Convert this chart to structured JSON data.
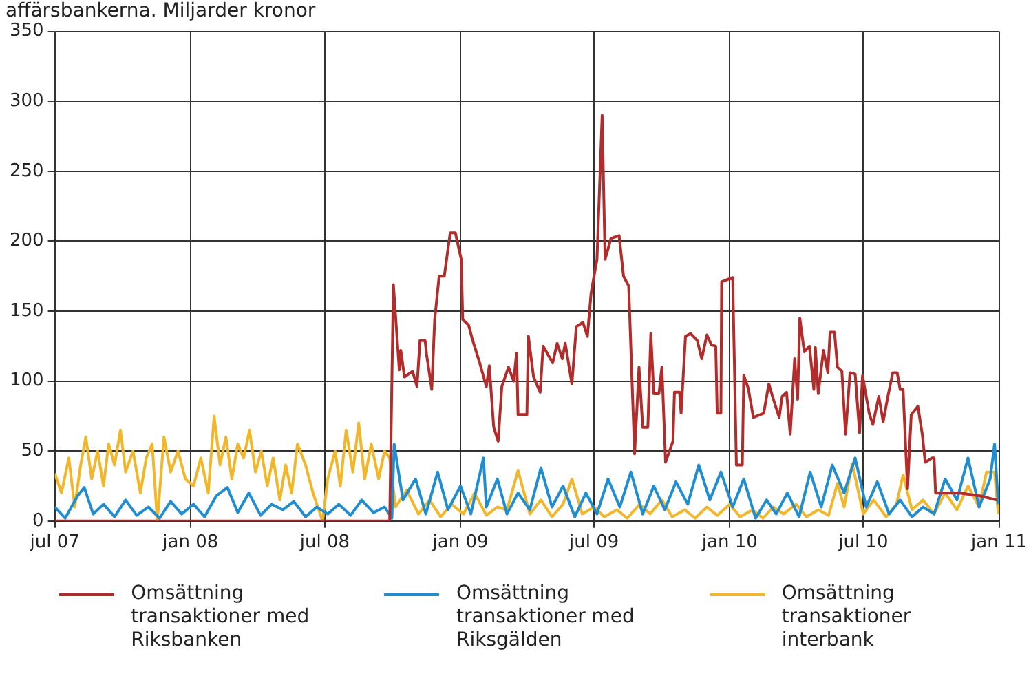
{
  "chart_data": {
    "type": "line",
    "title": "affärsbankerna. Miljarder kronor",
    "xlim": [
      "2007-07-01",
      "2011-01-01"
    ],
    "xticks": [
      {
        "value": "2007-07-01",
        "label": "jul 07"
      },
      {
        "value": "2008-01-01",
        "label": "jan 08"
      },
      {
        "value": "2008-07-01",
        "label": "jul 08"
      },
      {
        "value": "2009-01-01",
        "label": "jan 09"
      },
      {
        "value": "2009-07-01",
        "label": "jul 09"
      },
      {
        "value": "2010-01-01",
        "label": "jan 10"
      },
      {
        "value": "2010-07-01",
        "label": "jul 10"
      },
      {
        "value": "2011-01-01",
        "label": "jan 11"
      }
    ],
    "ylim": [
      0,
      350
    ],
    "yticks": [
      0,
      50,
      100,
      150,
      200,
      250,
      300,
      350
    ],
    "grid": true,
    "legend": "bottom",
    "marker": "none",
    "line_style": "solid",
    "series": [
      {
        "name": "Omsättning transaktioner med Riksbanken",
        "color": "#b22c2c",
        "x": [
          "2007-07-01",
          "2008-09-27",
          "2008-09-28",
          "2008-10-02",
          "2008-10-10",
          "2008-10-12",
          "2008-10-17",
          "2008-10-28",
          "2008-11-03",
          "2008-11-07",
          "2008-11-14",
          "2008-11-16",
          "2008-11-23",
          "2008-11-27",
          "2008-12-03",
          "2008-12-10",
          "2008-12-18",
          "2008-12-25",
          "2009-01-02",
          "2009-01-04",
          "2009-01-12",
          "2009-01-17",
          "2009-01-27",
          "2009-02-05",
          "2009-02-09",
          "2009-02-15",
          "2009-02-21",
          "2009-02-26",
          "2009-03-07",
          "2009-03-14",
          "2009-03-18",
          "2009-03-20",
          "2009-04-01",
          "2009-04-03",
          "2009-04-10",
          "2009-04-19",
          "2009-04-23",
          "2009-05-06",
          "2009-05-12",
          "2009-05-19",
          "2009-05-23",
          "2009-06-01",
          "2009-06-07",
          "2009-06-16",
          "2009-06-22",
          "2009-06-27",
          "2009-07-05",
          "2009-07-12",
          "2009-07-16",
          "2009-07-24",
          "2009-08-04",
          "2009-08-10",
          "2009-08-17",
          "2009-08-25",
          "2009-08-31",
          "2009-09-05",
          "2009-09-12",
          "2009-09-16",
          "2009-09-20",
          "2009-09-27",
          "2009-10-01",
          "2009-10-06",
          "2009-10-16",
          "2009-10-18",
          "2009-10-25",
          "2009-10-27",
          "2009-11-02",
          "2009-11-09",
          "2009-11-18",
          "2009-11-24",
          "2009-12-01",
          "2009-12-07",
          "2009-12-13",
          "2009-12-15",
          "2009-12-20",
          "2009-12-21",
          "2010-01-05",
          "2010-01-10",
          "2010-01-18",
          "2010-01-20",
          "2010-01-26",
          "2010-02-02",
          "2010-02-16",
          "2010-02-23",
          "2010-02-28",
          "2010-03-09",
          "2010-03-13",
          "2010-03-19",
          "2010-03-24",
          "2010-03-30",
          "2010-04-03",
          "2010-04-06",
          "2010-04-12",
          "2010-04-19",
          "2010-04-25",
          "2010-04-27",
          "2010-05-01",
          "2010-05-08",
          "2010-05-14",
          "2010-05-17",
          "2010-05-23",
          "2010-05-27",
          "2010-06-02",
          "2010-06-07",
          "2010-06-13",
          "2010-06-20",
          "2010-06-26",
          "2010-06-30",
          "2010-07-09",
          "2010-07-14",
          "2010-07-22",
          "2010-07-28",
          "2010-08-03",
          "2010-08-10",
          "2010-08-16",
          "2010-08-20",
          "2010-08-24",
          "2010-08-30",
          "2010-09-04",
          "2010-09-13",
          "2010-09-19",
          "2010-09-23",
          "2010-10-02",
          "2010-10-05",
          "2010-10-07",
          "2010-11-09",
          "2010-12-06",
          "2010-12-29"
        ],
        "values": [
          0,
          0,
          0,
          169,
          108,
          122,
          103,
          107,
          96,
          129,
          129,
          119,
          94,
          144,
          175,
          175,
          206,
          206,
          187,
          144,
          140,
          130,
          113,
          96,
          111,
          67,
          57,
          96,
          110,
          100,
          120,
          76,
          76,
          132,
          103,
          92,
          125,
          113,
          127,
          116,
          127,
          98,
          139,
          142,
          132,
          163,
          187,
          290,
          187,
          202,
          204,
          175,
          168,
          48,
          110,
          67,
          67,
          134,
          91,
          91,
          110,
          42,
          57,
          92,
          92,
          77,
          132,
          134,
          129,
          116,
          133,
          126,
          125,
          77,
          77,
          171,
          174,
          40,
          40,
          104,
          95,
          74,
          77,
          98,
          89,
          74,
          89,
          92,
          62,
          116,
          87,
          145,
          121,
          125,
          94,
          124,
          91,
          122,
          106,
          135,
          135,
          110,
          107,
          62,
          106,
          105,
          63,
          104,
          77,
          69,
          89,
          71,
          88,
          106,
          106,
          94,
          94,
          23,
          76,
          82,
          62,
          42,
          45,
          45,
          20,
          20,
          18,
          15
        ]
      },
      {
        "name": "Omsättning transaktioner med Riksgälden",
        "color": "#1f8dd0",
        "x": [
          "2007-07-01",
          "2007-07-15",
          "2007-08-01",
          "2007-08-10",
          "2007-08-22",
          "2007-09-05",
          "2007-09-20",
          "2007-10-05",
          "2007-10-20",
          "2007-11-05",
          "2007-11-20",
          "2007-12-05",
          "2007-12-20",
          "2008-01-05",
          "2008-01-20",
          "2008-02-05",
          "2008-02-20",
          "2008-03-05",
          "2008-03-20",
          "2008-04-05",
          "2008-04-20",
          "2008-05-05",
          "2008-05-20",
          "2008-06-05",
          "2008-06-20",
          "2008-07-05",
          "2008-07-20",
          "2008-08-05",
          "2008-08-20",
          "2008-09-05",
          "2008-09-20",
          "2008-09-30",
          "2008-10-03",
          "2008-10-15",
          "2008-11-01",
          "2008-11-15",
          "2008-12-01",
          "2008-12-15",
          "2009-01-01",
          "2009-01-15",
          "2009-02-01",
          "2009-02-05",
          "2009-02-20",
          "2009-03-05",
          "2009-03-20",
          "2009-04-05",
          "2009-04-20",
          "2009-05-05",
          "2009-05-20",
          "2009-06-05",
          "2009-06-20",
          "2009-07-05",
          "2009-07-20",
          "2009-08-05",
          "2009-08-20",
          "2009-09-05",
          "2009-09-20",
          "2009-10-05",
          "2009-10-20",
          "2009-11-05",
          "2009-11-20",
          "2009-12-05",
          "2009-12-20",
          "2010-01-05",
          "2010-01-20",
          "2010-02-05",
          "2010-02-20",
          "2010-03-05",
          "2010-03-20",
          "2010-04-05",
          "2010-04-20",
          "2010-05-05",
          "2010-05-20",
          "2010-06-05",
          "2010-06-20",
          "2010-07-05",
          "2010-07-20",
          "2010-08-05",
          "2010-08-20",
          "2010-09-05",
          "2010-09-20",
          "2010-10-05",
          "2010-10-20",
          "2010-11-05",
          "2010-11-20",
          "2010-12-05",
          "2010-12-20",
          "2010-12-26",
          "2010-12-31"
        ],
        "values": [
          10,
          2,
          18,
          24,
          5,
          12,
          3,
          15,
          4,
          10,
          2,
          14,
          5,
          12,
          3,
          18,
          24,
          6,
          20,
          4,
          12,
          8,
          14,
          3,
          10,
          5,
          12,
          4,
          15,
          6,
          10,
          2,
          55,
          15,
          30,
          5,
          35,
          8,
          25,
          5,
          45,
          10,
          30,
          5,
          20,
          8,
          38,
          10,
          25,
          3,
          20,
          5,
          30,
          10,
          35,
          5,
          25,
          8,
          28,
          12,
          40,
          15,
          35,
          10,
          30,
          2,
          15,
          5,
          20,
          3,
          35,
          10,
          40,
          20,
          45,
          10,
          28,
          5,
          15,
          3,
          10,
          5,
          30,
          15,
          45,
          10,
          30,
          55,
          12
        ]
      },
      {
        "name": "Omsättning transaktioner interbank",
        "color": "#f2b62a",
        "x": [
          "2007-07-01",
          "2007-07-10",
          "2007-07-20",
          "2007-07-28",
          "2007-08-05",
          "2007-08-12",
          "2007-08-20",
          "2007-08-28",
          "2007-09-05",
          "2007-09-12",
          "2007-09-20",
          "2007-09-28",
          "2007-10-05",
          "2007-10-15",
          "2007-10-25",
          "2007-11-02",
          "2007-11-10",
          "2007-11-17",
          "2007-11-26",
          "2007-12-05",
          "2007-12-15",
          "2007-12-25",
          "2008-01-05",
          "2008-01-15",
          "2008-01-25",
          "2008-02-02",
          "2008-02-10",
          "2008-02-18",
          "2008-02-26",
          "2008-03-05",
          "2008-03-13",
          "2008-03-21",
          "2008-03-29",
          "2008-04-06",
          "2008-04-14",
          "2008-04-22",
          "2008-05-01",
          "2008-05-09",
          "2008-05-17",
          "2008-05-25",
          "2008-06-05",
          "2008-06-15",
          "2008-06-28",
          "2008-07-05",
          "2008-07-15",
          "2008-07-22",
          "2008-07-30",
          "2008-08-08",
          "2008-08-16",
          "2008-08-24",
          "2008-09-02",
          "2008-09-12",
          "2008-09-20",
          "2008-09-27",
          "2008-10-05",
          "2008-10-20",
          "2008-11-05",
          "2008-11-20",
          "2008-12-05",
          "2008-12-20",
          "2009-01-05",
          "2009-01-20",
          "2009-02-05",
          "2009-02-20",
          "2009-03-05",
          "2009-03-20",
          "2009-04-05",
          "2009-04-20",
          "2009-05-05",
          "2009-05-20",
          "2009-06-01",
          "2009-06-15",
          "2009-07-01",
          "2009-07-15",
          "2009-08-01",
          "2009-08-15",
          "2009-09-01",
          "2009-09-15",
          "2009-10-01",
          "2009-10-15",
          "2009-11-01",
          "2009-11-15",
          "2009-12-01",
          "2009-12-15",
          "2010-01-01",
          "2010-01-15",
          "2010-02-01",
          "2010-02-15",
          "2010-03-01",
          "2010-03-15",
          "2010-04-01",
          "2010-04-15",
          "2010-05-01",
          "2010-05-15",
          "2010-05-27",
          "2010-06-05",
          "2010-06-16",
          "2010-07-01",
          "2010-07-15",
          "2010-08-01",
          "2010-08-15",
          "2010-08-24",
          "2010-09-05",
          "2010-09-20",
          "2010-10-05",
          "2010-10-20",
          "2010-11-05",
          "2010-11-20",
          "2010-12-05",
          "2010-12-15",
          "2010-12-26",
          "2010-12-31"
        ],
        "values": [
          34,
          20,
          45,
          10,
          40,
          60,
          30,
          50,
          25,
          55,
          40,
          65,
          35,
          50,
          20,
          45,
          55,
          0,
          60,
          35,
          50,
          30,
          25,
          45,
          20,
          75,
          40,
          60,
          30,
          55,
          45,
          65,
          35,
          50,
          25,
          45,
          15,
          40,
          20,
          55,
          40,
          20,
          0,
          30,
          50,
          25,
          65,
          35,
          70,
          30,
          55,
          30,
          50,
          45,
          10,
          22,
          5,
          15,
          3,
          12,
          5,
          20,
          4,
          10,
          8,
          36,
          5,
          15,
          3,
          12,
          30,
          5,
          10,
          3,
          8,
          2,
          12,
          5,
          15,
          3,
          8,
          2,
          10,
          4,
          12,
          3,
          8,
          2,
          10,
          5,
          12,
          3,
          8,
          4,
          27,
          10,
          41,
          5,
          15,
          3,
          12,
          33,
          8,
          15,
          5,
          20,
          8,
          25,
          10,
          35,
          35,
          5
        ]
      }
    ]
  }
}
